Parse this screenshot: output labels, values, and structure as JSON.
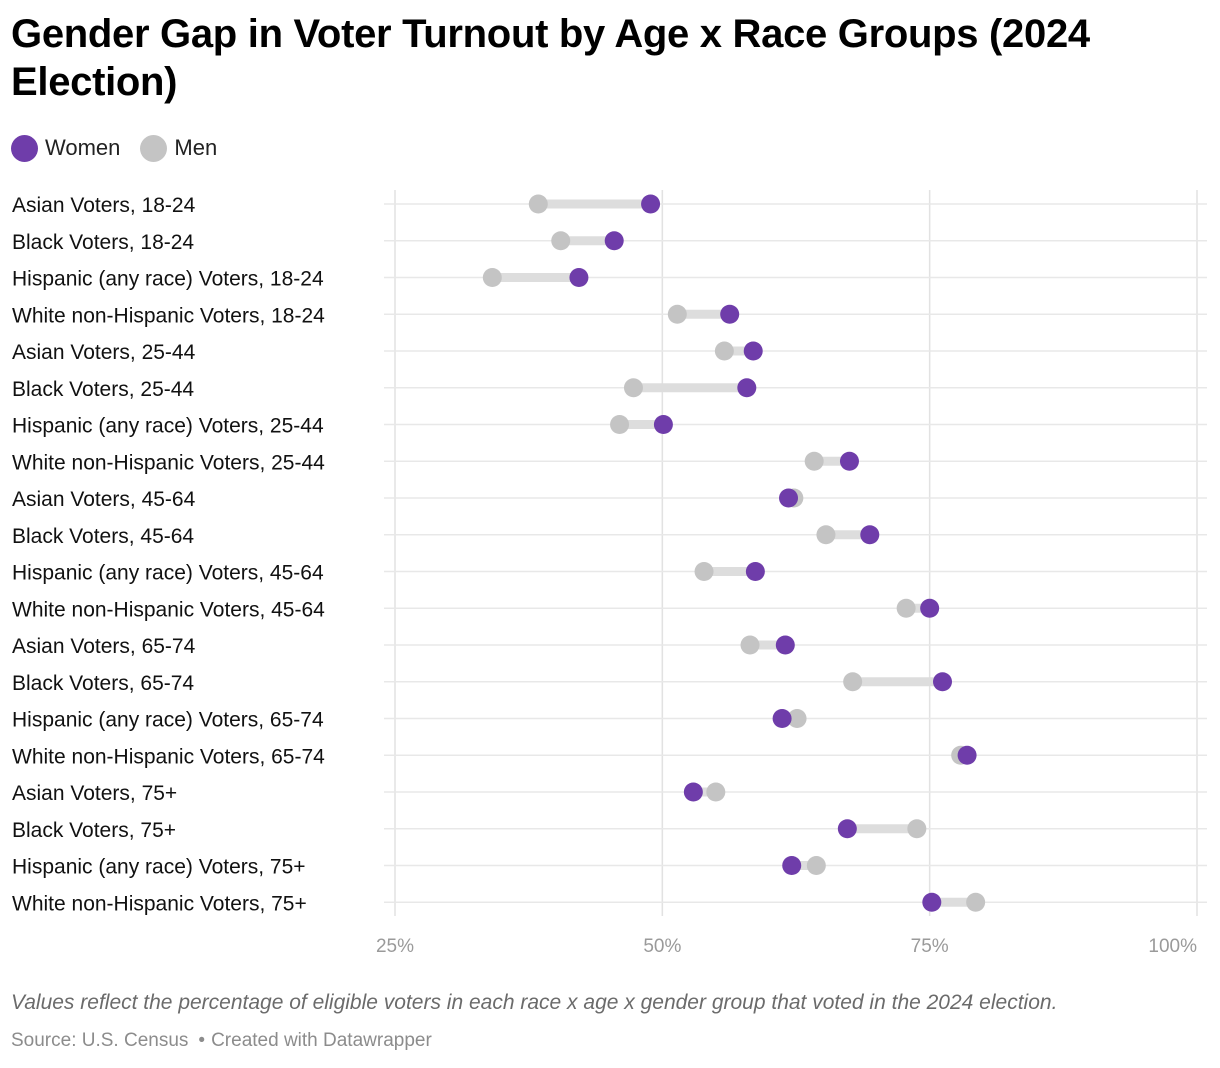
{
  "title": "Gender Gap in Voter Turnout by Age x Race Groups (2024 Election)",
  "legend": {
    "women_label": "Women",
    "men_label": "Men",
    "women_color": "#6f3daa",
    "men_color": "#c4c4c4"
  },
  "note": "Values reflect the percentage of eligible voters in each race x age x gender group that voted in the 2024 election.",
  "footer": {
    "source": "Source: U.S. Census",
    "created": "Created with Datawrapper"
  },
  "chart_data": {
    "type": "dot-range",
    "x_ticks": [
      "25%",
      "50%",
      "75%",
      "100%"
    ],
    "x_tick_values": [
      25,
      50,
      75,
      100
    ],
    "xlim": [
      25,
      100
    ],
    "grid": true,
    "legend_position": "top-left",
    "categories": [
      "Asian Voters, 18-24",
      "Black Voters, 18-24",
      "Hispanic (any race) Voters, 18-24",
      "White non-Hispanic Voters, 18-24",
      "Asian Voters, 25-44",
      "Black Voters, 25-44",
      "Hispanic (any race) Voters, 25-44",
      "White non-Hispanic Voters, 25-44",
      "Asian Voters, 45-64",
      "Black Voters, 45-64",
      "Hispanic (any race) Voters, 45-64",
      "White non-Hispanic Voters, 45-64",
      "Asian Voters, 65-74",
      "Black Voters, 65-74",
      "Hispanic (any race) Voters, 65-74",
      "White non-Hispanic Voters, 65-74",
      "Asian Voters, 75+",
      "Black Voters, 75+",
      "Hispanic (any race) Voters, 75+",
      "White non-Hispanic Voters, 75+"
    ],
    "series": [
      {
        "name": "Women",
        "values": [
          48.9,
          45.5,
          42.2,
          56.3,
          58.5,
          57.9,
          50.1,
          67.5,
          61.8,
          69.4,
          58.7,
          75.0,
          61.5,
          76.2,
          61.2,
          78.5,
          52.9,
          67.3,
          62.1,
          75.2
        ]
      },
      {
        "name": "Men",
        "values": [
          38.4,
          40.5,
          34.1,
          51.4,
          55.8,
          47.3,
          46.0,
          64.2,
          62.3,
          65.3,
          53.9,
          72.8,
          58.2,
          67.8,
          62.6,
          77.9,
          55.0,
          73.8,
          64.4,
          79.3
        ]
      }
    ]
  }
}
